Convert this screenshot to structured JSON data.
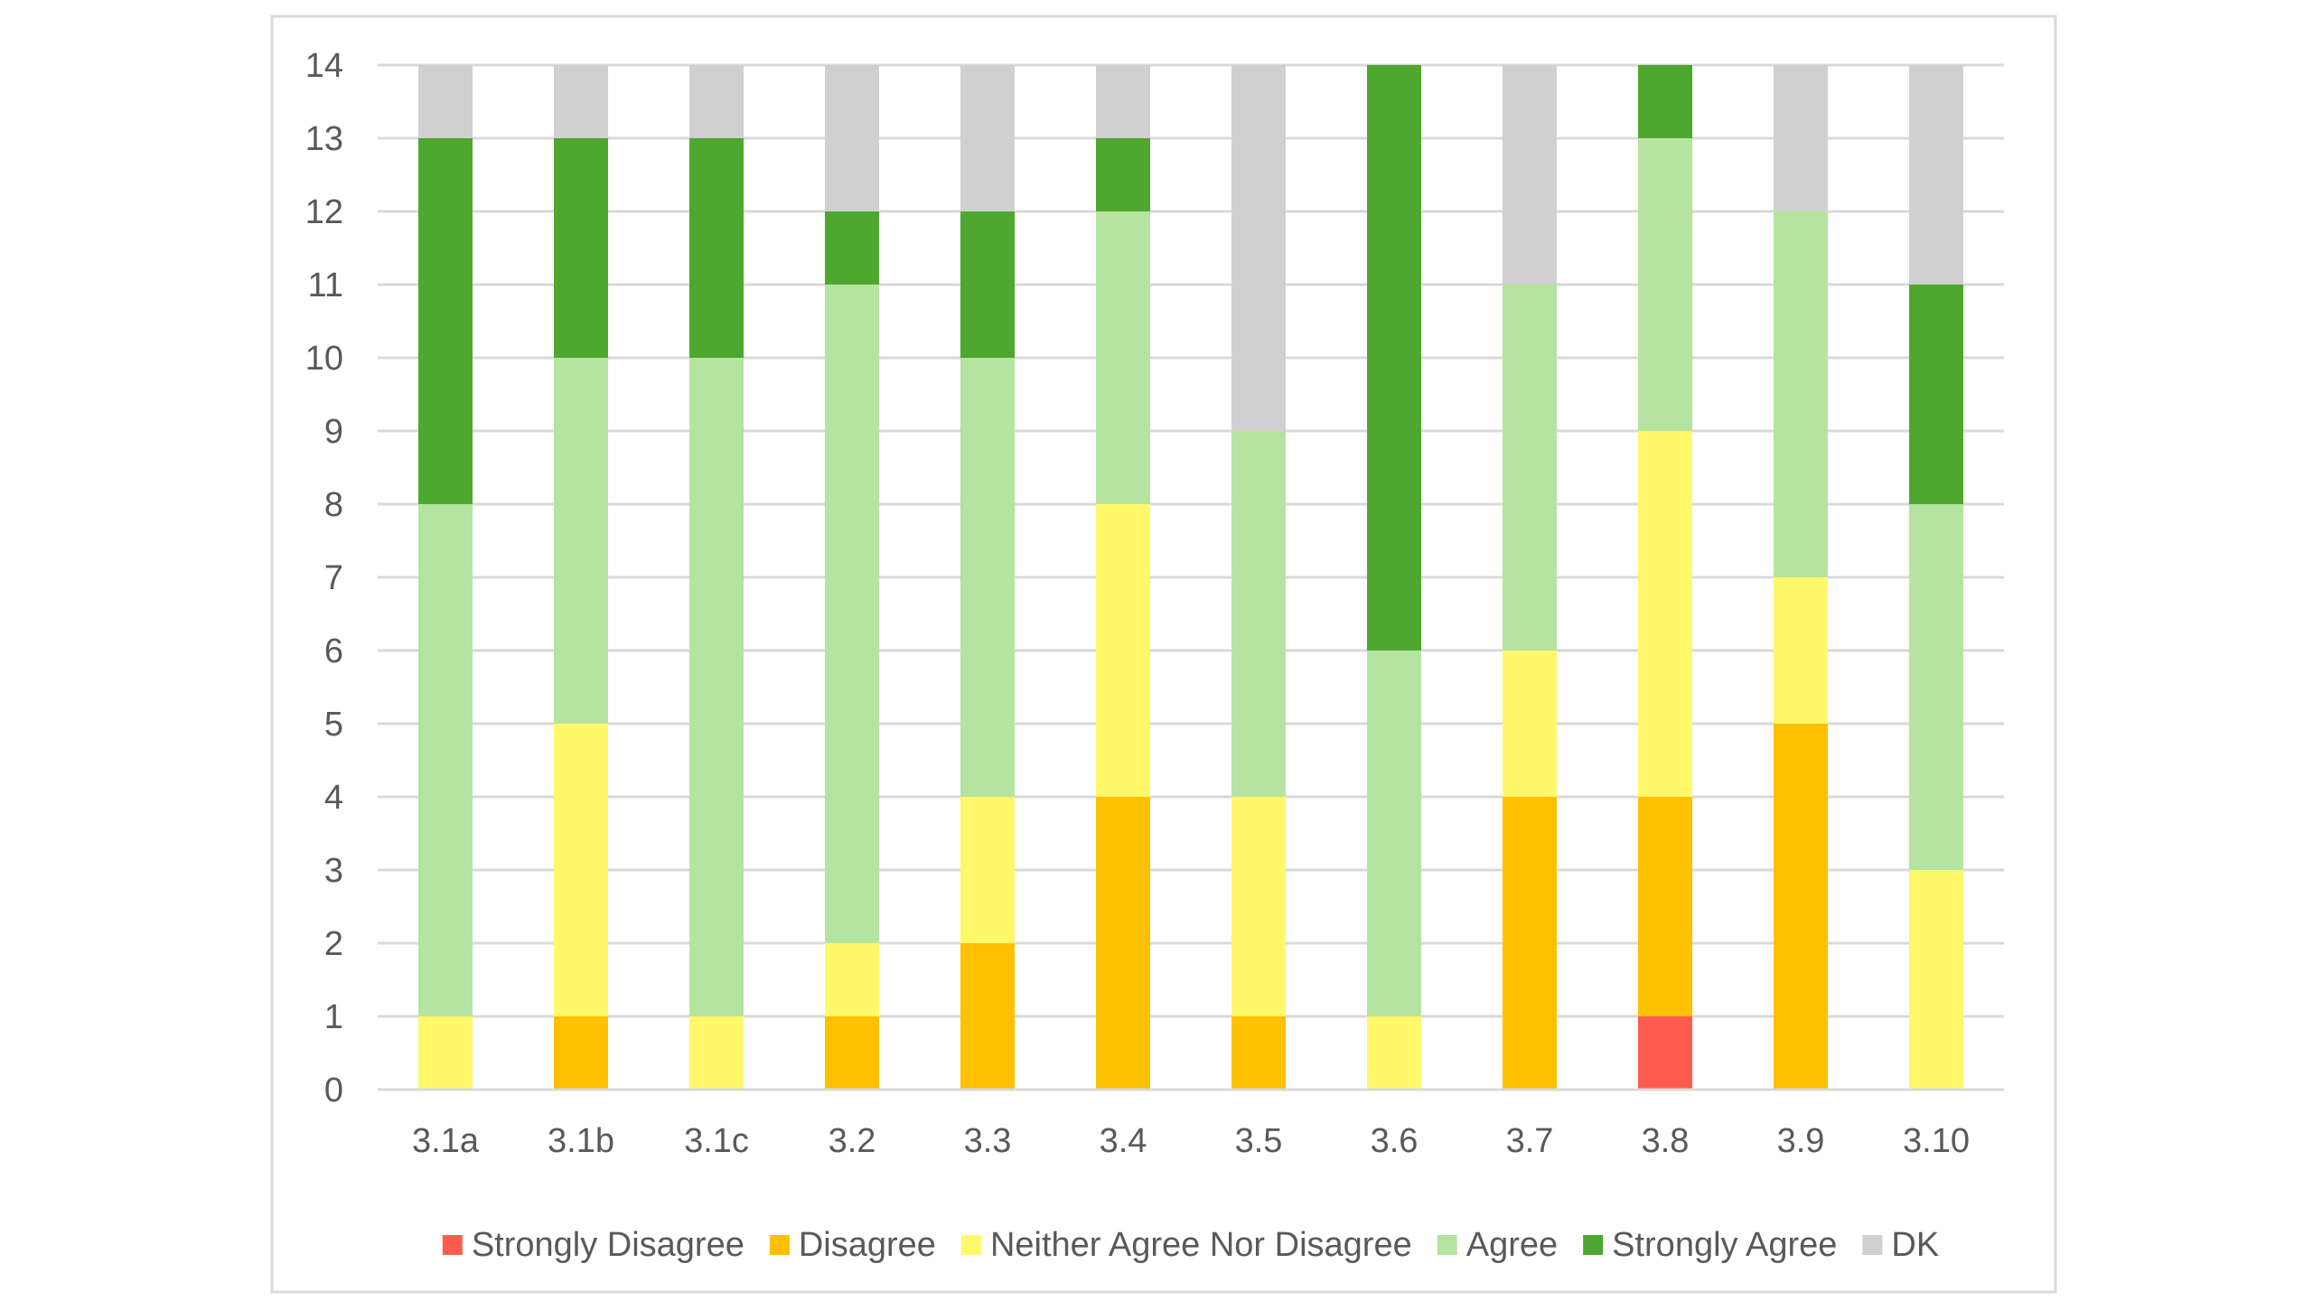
{
  "chart_data": {
    "type": "bar",
    "stacked": true,
    "title": "",
    "xlabel": "",
    "ylabel": "",
    "ylim": [
      0,
      14
    ],
    "yticks": [
      0,
      1,
      2,
      3,
      4,
      5,
      6,
      7,
      8,
      9,
      10,
      11,
      12,
      13,
      14
    ],
    "grid": true,
    "legend_position": "bottom",
    "categories": [
      "3.1a",
      "3.1b",
      "3.1c",
      "3.2",
      "3.3",
      "3.4",
      "3.5",
      "3.6",
      "3.7",
      "3.8",
      "3.9",
      "3.10"
    ],
    "series": [
      {
        "name": "Strongly Disagree",
        "color": "#ff5a4f",
        "values": [
          0,
          0,
          0,
          0,
          0,
          0,
          0,
          0,
          0,
          1,
          0,
          0
        ]
      },
      {
        "name": "Disagree",
        "color": "#ffc000",
        "values": [
          0,
          1,
          0,
          1,
          2,
          4,
          1,
          0,
          4,
          3,
          5,
          0
        ]
      },
      {
        "name": "Neither Agree Nor Disagree",
        "color": "#fff86b",
        "values": [
          1,
          4,
          1,
          1,
          2,
          4,
          3,
          1,
          2,
          5,
          2,
          3
        ]
      },
      {
        "name": "Agree",
        "color": "#b5e4a0",
        "values": [
          7,
          5,
          9,
          9,
          6,
          4,
          5,
          5,
          5,
          4,
          5,
          5
        ]
      },
      {
        "name": "Strongly Agree",
        "color": "#4ea72e",
        "values": [
          5,
          3,
          3,
          1,
          2,
          1,
          0,
          8,
          0,
          1,
          0,
          3
        ]
      },
      {
        "name": "DK",
        "color": "#d0d0d0",
        "values": [
          1,
          1,
          1,
          2,
          2,
          1,
          5,
          0,
          3,
          0,
          2,
          3
        ]
      }
    ]
  }
}
